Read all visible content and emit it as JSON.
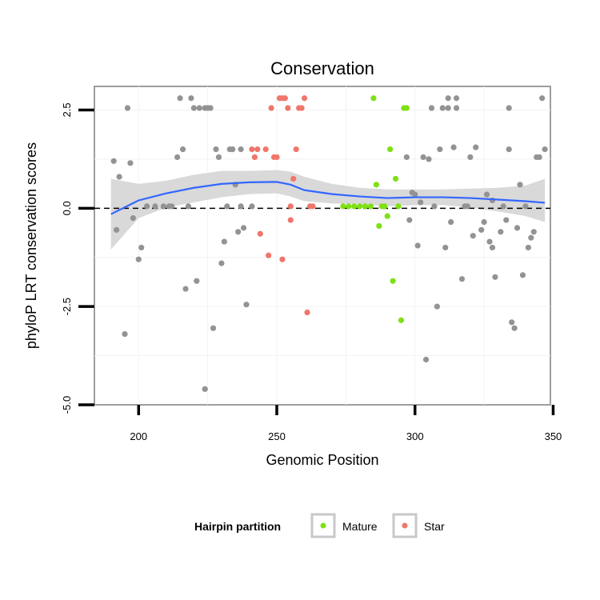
{
  "chart_data": {
    "type": "scatter",
    "title": "Conservation",
    "xlabel": "Genomic Position",
    "ylabel": "phyloP LRT conservation scores",
    "xlim": [
      184,
      349
    ],
    "ylim": [
      -5.0,
      3.1
    ],
    "x_ticks": [
      200,
      250,
      300,
      350
    ],
    "y_ticks": [
      -5.0,
      -2.5,
      0.0,
      2.5
    ],
    "x_tick_labels": [
      "200",
      "250",
      "300",
      "350"
    ],
    "y_tick_labels": [
      "-5.0",
      "-2.5",
      "0.0",
      "2.5"
    ],
    "reference_line": {
      "y": 0,
      "style": "dashed"
    },
    "grid": true,
    "legend": {
      "title": "Hairpin partition",
      "position": "bottom",
      "items": [
        {
          "label": "Mature",
          "color": "#7FE014"
        },
        {
          "label": "Star",
          "color": "#F0766B"
        }
      ]
    },
    "colors": {
      "other": "#939393",
      "mature": "#7FE014",
      "star": "#F0766B",
      "smooth": "#3366FF",
      "band": "#D9D9D9",
      "panel_border": "#7F7F7F"
    },
    "series": [
      {
        "group": "other",
        "points": [
          [
            191,
            1.2
          ],
          [
            192,
            -0.55
          ],
          [
            193,
            0.8
          ],
          [
            195,
            -3.2
          ],
          [
            196,
            2.55
          ],
          [
            197,
            1.15
          ],
          [
            198,
            -0.25
          ],
          [
            200,
            -1.3
          ],
          [
            201,
            -1.0
          ],
          [
            203,
            0.05
          ],
          [
            206,
            0.05
          ],
          [
            209,
            0.05
          ],
          [
            211,
            0.05
          ],
          [
            212,
            0.05
          ],
          [
            214,
            1.3
          ],
          [
            215,
            2.8
          ],
          [
            216,
            1.5
          ],
          [
            217,
            -2.05
          ],
          [
            218,
            0.05
          ],
          [
            219,
            2.8
          ],
          [
            220,
            2.55
          ],
          [
            221,
            -1.85
          ],
          [
            222,
            2.55
          ],
          [
            224,
            -4.6
          ],
          [
            224,
            2.55
          ],
          [
            225,
            2.55
          ],
          [
            226,
            2.55
          ],
          [
            227,
            -3.05
          ],
          [
            228,
            1.5
          ],
          [
            229,
            1.3
          ],
          [
            230,
            -1.4
          ],
          [
            231,
            -0.85
          ],
          [
            232,
            0.05
          ],
          [
            233,
            1.5
          ],
          [
            234,
            1.5
          ],
          [
            235,
            0.6
          ],
          [
            236,
            -0.6
          ],
          [
            237,
            1.5
          ],
          [
            237,
            0.05
          ],
          [
            238,
            -0.5
          ],
          [
            239,
            -2.45
          ],
          [
            241,
            0.05
          ],
          [
            297,
            1.3
          ],
          [
            298,
            -0.3
          ],
          [
            299,
            0.4
          ],
          [
            300,
            0.35
          ],
          [
            301,
            -0.95
          ],
          [
            302,
            0.15
          ],
          [
            303,
            1.3
          ],
          [
            304,
            -3.85
          ],
          [
            305,
            1.25
          ],
          [
            306,
            2.55
          ],
          [
            307,
            0.05
          ],
          [
            308,
            -2.5
          ],
          [
            309,
            1.5
          ],
          [
            310,
            2.55
          ],
          [
            311,
            -1.0
          ],
          [
            312,
            2.55
          ],
          [
            312,
            2.8
          ],
          [
            313,
            -0.35
          ],
          [
            314,
            1.55
          ],
          [
            315,
            2.55
          ],
          [
            315,
            2.8
          ],
          [
            317,
            -1.8
          ],
          [
            318,
            0.05
          ],
          [
            319,
            0.05
          ],
          [
            320,
            1.3
          ],
          [
            321,
            -0.7
          ],
          [
            322,
            1.55
          ],
          [
            324,
            -0.55
          ],
          [
            325,
            -0.35
          ],
          [
            326,
            0.35
          ],
          [
            327,
            -0.85
          ],
          [
            328,
            0.2
          ],
          [
            328,
            -1.0
          ],
          [
            329,
            -1.75
          ],
          [
            331,
            -0.6
          ],
          [
            332,
            0.05
          ],
          [
            333,
            -0.3
          ],
          [
            334,
            2.55
          ],
          [
            334,
            1.5
          ],
          [
            335,
            -2.9
          ],
          [
            336,
            -3.05
          ],
          [
            337,
            -0.5
          ],
          [
            338,
            0.6
          ],
          [
            339,
            -1.7
          ],
          [
            340,
            0.05
          ],
          [
            341,
            -1.0
          ],
          [
            342,
            -0.75
          ],
          [
            343,
            -0.6
          ],
          [
            344,
            1.3
          ],
          [
            345,
            1.3
          ],
          [
            346,
            2.8
          ],
          [
            347,
            1.5
          ]
        ]
      },
      {
        "group": "star",
        "name": "Star",
        "points": [
          [
            241,
            1.5
          ],
          [
            242,
            1.3
          ],
          [
            243,
            1.5
          ],
          [
            244,
            -0.65
          ],
          [
            246,
            1.5
          ],
          [
            247,
            -1.2
          ],
          [
            248,
            2.55
          ],
          [
            249,
            1.3
          ],
          [
            250,
            1.3
          ],
          [
            251,
            2.8
          ],
          [
            252,
            2.8
          ],
          [
            252,
            -1.3
          ],
          [
            253,
            2.8
          ],
          [
            254,
            2.55
          ],
          [
            255,
            -0.3
          ],
          [
            255,
            0.05
          ],
          [
            256,
            0.75
          ],
          [
            257,
            1.5
          ],
          [
            258,
            2.55
          ],
          [
            259,
            2.55
          ],
          [
            260,
            2.8
          ],
          [
            261,
            -2.65
          ],
          [
            262,
            0.05
          ],
          [
            263,
            0.05
          ]
        ]
      },
      {
        "group": "mature",
        "name": "Mature",
        "points": [
          [
            274,
            0.05
          ],
          [
            276,
            0.05
          ],
          [
            278,
            0.05
          ],
          [
            280,
            0.05
          ],
          [
            282,
            0.05
          ],
          [
            284,
            0.05
          ],
          [
            285,
            2.8
          ],
          [
            286,
            0.6
          ],
          [
            287,
            -0.45
          ],
          [
            288,
            0.05
          ],
          [
            289,
            0.05
          ],
          [
            290,
            -0.2
          ],
          [
            291,
            1.5
          ],
          [
            292,
            -1.85
          ],
          [
            293,
            0.75
          ],
          [
            294,
            0.05
          ],
          [
            295,
            -2.85
          ],
          [
            296,
            2.55
          ],
          [
            297,
            2.55
          ]
        ]
      }
    ],
    "smooth": {
      "method": "loess",
      "x": [
        190,
        200,
        210,
        220,
        230,
        240,
        250,
        255,
        260,
        270,
        280,
        290,
        300,
        310,
        320,
        330,
        340,
        347
      ],
      "y": [
        -0.15,
        0.2,
        0.38,
        0.52,
        0.62,
        0.66,
        0.67,
        0.6,
        0.46,
        0.36,
        0.3,
        0.26,
        0.28,
        0.28,
        0.26,
        0.22,
        0.18,
        0.14
      ],
      "lower": [
        -1.05,
        -0.25,
        0.02,
        0.15,
        0.28,
        0.36,
        0.38,
        0.3,
        0.18,
        0.12,
        0.1,
        0.05,
        0.08,
        0.08,
        0.02,
        -0.08,
        -0.2,
        -0.35
      ],
      "upper": [
        0.75,
        0.62,
        0.7,
        0.85,
        0.95,
        0.95,
        0.97,
        0.93,
        0.8,
        0.62,
        0.52,
        0.48,
        0.48,
        0.48,
        0.5,
        0.52,
        0.58,
        0.75
      ]
    }
  }
}
